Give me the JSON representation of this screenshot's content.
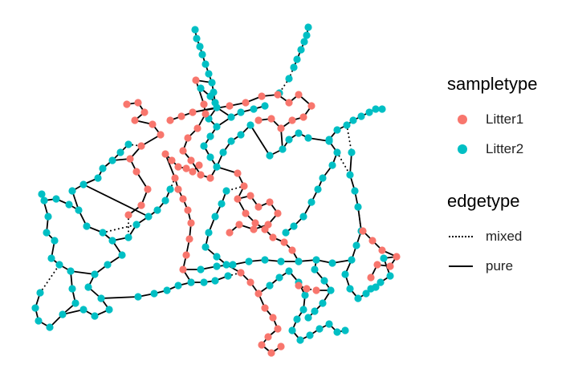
{
  "colors": {
    "Litter1": "#F8766D",
    "Litter2": "#00BFC4",
    "edge": "#000000"
  },
  "legend": {
    "sampletype": {
      "title": "sampletype",
      "items": [
        {
          "label": "Litter1",
          "color": "#F8766D"
        },
        {
          "label": "Litter2",
          "color": "#00BFC4"
        }
      ]
    },
    "edgetype": {
      "title": "edgetype",
      "items": [
        {
          "label": "mixed",
          "style": "dotted"
        },
        {
          "label": "pure",
          "style": "solid"
        }
      ]
    }
  }
}
